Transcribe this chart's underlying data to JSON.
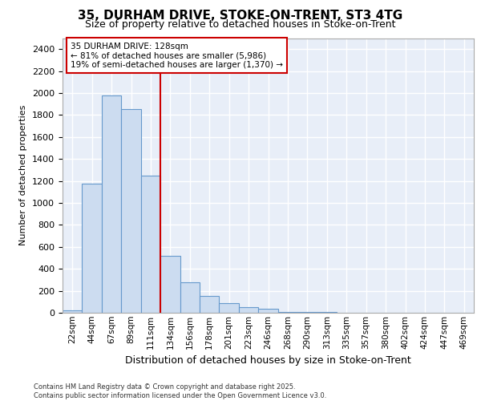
{
  "title_line1": "35, DURHAM DRIVE, STOKE-ON-TRENT, ST3 4TG",
  "title_line2": "Size of property relative to detached houses in Stoke-on-Trent",
  "xlabel": "Distribution of detached houses by size in Stoke-on-Trent",
  "ylabel": "Number of detached properties",
  "categories": [
    "22sqm",
    "44sqm",
    "67sqm",
    "89sqm",
    "111sqm",
    "134sqm",
    "156sqm",
    "178sqm",
    "201sqm",
    "223sqm",
    "246sqm",
    "268sqm",
    "290sqm",
    "313sqm",
    "335sqm",
    "357sqm",
    "380sqm",
    "402sqm",
    "424sqm",
    "447sqm",
    "469sqm"
  ],
  "values": [
    25,
    1175,
    1975,
    1855,
    1245,
    520,
    275,
    155,
    90,
    48,
    40,
    10,
    10,
    5,
    3,
    2,
    1,
    1,
    1,
    1,
    1
  ],
  "bar_color": "#ccdcf0",
  "bar_edge_color": "#6699cc",
  "vline_color": "#cc0000",
  "vline_bar_index": 5,
  "annotation_line1": "35 DURHAM DRIVE: 128sqm",
  "annotation_line2": "← 81% of detached houses are smaller (5,986)",
  "annotation_line3": "19% of semi-detached houses are larger (1,370) →",
  "ann_box_edge_color": "#cc0000",
  "plot_bg_color": "#e8eef8",
  "grid_color": "#ffffff",
  "fig_bg_color": "#ffffff",
  "ylim": [
    0,
    2500
  ],
  "yticks": [
    0,
    200,
    400,
    600,
    800,
    1000,
    1200,
    1400,
    1600,
    1800,
    2000,
    2200,
    2400
  ],
  "title1_fontsize": 11,
  "title2_fontsize": 9,
  "ylabel_fontsize": 8,
  "xlabel_fontsize": 9,
  "tick_fontsize": 8,
  "xtick_fontsize": 7.5,
  "footer_line1": "Contains HM Land Registry data © Crown copyright and database right 2025.",
  "footer_line2": "Contains public sector information licensed under the Open Government Licence v3.0."
}
